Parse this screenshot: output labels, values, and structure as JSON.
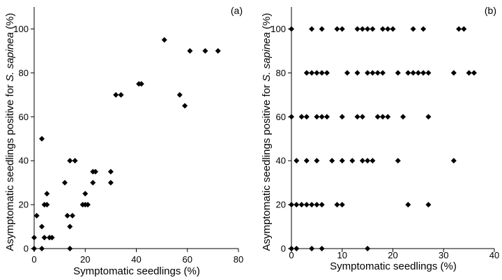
{
  "chart_data": [
    {
      "type": "scatter",
      "panel_label": "(a)",
      "xlabel": "Symptomatic seedlings (%)",
      "ylabel_prefix": "Asymptomatic seedlings positive for ",
      "ylabel_italic": "S. sapinea",
      "ylabel_suffix": " (%)",
      "xlim": [
        0,
        80
      ],
      "ylim": [
        0,
        110
      ],
      "xticks": [
        0,
        20,
        40,
        60,
        80
      ],
      "yticks": [
        0,
        20,
        40,
        60,
        80,
        100
      ],
      "xtick_labels": [
        "0",
        "20",
        "40",
        "60",
        "80"
      ],
      "ytick_labels": [
        "0",
        "20",
        "40",
        "60",
        "80",
        "100"
      ],
      "marker": "diamond",
      "grid": false,
      "points": [
        [
          0,
          0
        ],
        [
          0,
          5
        ],
        [
          1,
          15
        ],
        [
          3,
          50
        ],
        [
          3,
          10
        ],
        [
          3,
          0
        ],
        [
          4,
          5
        ],
        [
          4,
          20
        ],
        [
          5,
          20
        ],
        [
          5,
          25
        ],
        [
          6,
          5
        ],
        [
          7,
          5
        ],
        [
          12,
          30
        ],
        [
          13,
          15
        ],
        [
          14,
          10
        ],
        [
          14,
          40
        ],
        [
          14,
          0
        ],
        [
          15,
          15
        ],
        [
          16,
          40
        ],
        [
          19,
          20
        ],
        [
          20,
          20
        ],
        [
          20,
          25
        ],
        [
          21,
          20
        ],
        [
          23,
          30
        ],
        [
          23,
          35
        ],
        [
          24,
          35
        ],
        [
          30,
          30
        ],
        [
          30,
          35
        ],
        [
          32,
          70
        ],
        [
          34,
          70
        ],
        [
          41,
          75
        ],
        [
          42,
          75
        ],
        [
          51,
          95
        ],
        [
          57,
          70
        ],
        [
          59,
          65
        ],
        [
          61,
          90
        ],
        [
          67,
          90
        ],
        [
          72,
          90
        ]
      ]
    },
    {
      "type": "scatter",
      "panel_label": "(b)",
      "xlabel": "Symptomatic seedlings (%)",
      "ylabel_prefix": "Asymptomatic seedlings positive for ",
      "ylabel_italic": "S. sapinea",
      "ylabel_suffix": " (%)",
      "xlim": [
        0,
        40
      ],
      "ylim": [
        0,
        110
      ],
      "xticks": [
        0,
        10,
        20,
        30,
        40
      ],
      "yticks": [
        0,
        20,
        40,
        60,
        80,
        100
      ],
      "xtick_labels": [
        "0",
        "10",
        "20",
        "30",
        "40"
      ],
      "ytick_labels": [
        "0",
        "20",
        "40",
        "60",
        "80",
        "100"
      ],
      "marker": "diamond",
      "grid": false,
      "points": [
        [
          0,
          100
        ],
        [
          4,
          100
        ],
        [
          6,
          100
        ],
        [
          9,
          100
        ],
        [
          10,
          100
        ],
        [
          13,
          100
        ],
        [
          14,
          100
        ],
        [
          15,
          100
        ],
        [
          16,
          100
        ],
        [
          18,
          100
        ],
        [
          19,
          100
        ],
        [
          20,
          100
        ],
        [
          24,
          100
        ],
        [
          26,
          100
        ],
        [
          33,
          100
        ],
        [
          34,
          100
        ],
        [
          3,
          80
        ],
        [
          4,
          80
        ],
        [
          5,
          80
        ],
        [
          6,
          80
        ],
        [
          7,
          80
        ],
        [
          11,
          80
        ],
        [
          13,
          80
        ],
        [
          15,
          80
        ],
        [
          16,
          80
        ],
        [
          17,
          80
        ],
        [
          18,
          80
        ],
        [
          21,
          80
        ],
        [
          23,
          80
        ],
        [
          24,
          80
        ],
        [
          25,
          80
        ],
        [
          26,
          80
        ],
        [
          27,
          80
        ],
        [
          32,
          80
        ],
        [
          35,
          80
        ],
        [
          36,
          80
        ],
        [
          0,
          60
        ],
        [
          2,
          60
        ],
        [
          3,
          60
        ],
        [
          5,
          60
        ],
        [
          6,
          60
        ],
        [
          7,
          60
        ],
        [
          10,
          60
        ],
        [
          13,
          60
        ],
        [
          14,
          60
        ],
        [
          17,
          60
        ],
        [
          18,
          60
        ],
        [
          19,
          60
        ],
        [
          22,
          60
        ],
        [
          27,
          60
        ],
        [
          1,
          40
        ],
        [
          3,
          40
        ],
        [
          5,
          40
        ],
        [
          8,
          40
        ],
        [
          10,
          40
        ],
        [
          12,
          40
        ],
        [
          14,
          40
        ],
        [
          15,
          40
        ],
        [
          16,
          40
        ],
        [
          21,
          40
        ],
        [
          32,
          40
        ],
        [
          0,
          20
        ],
        [
          1,
          20
        ],
        [
          2,
          20
        ],
        [
          3,
          20
        ],
        [
          4,
          20
        ],
        [
          5,
          20
        ],
        [
          6,
          20
        ],
        [
          9,
          20
        ],
        [
          10,
          20
        ],
        [
          23,
          20
        ],
        [
          27,
          20
        ],
        [
          0,
          0
        ],
        [
          1,
          0
        ],
        [
          4,
          0
        ],
        [
          6,
          0
        ],
        [
          15,
          0
        ]
      ]
    }
  ]
}
